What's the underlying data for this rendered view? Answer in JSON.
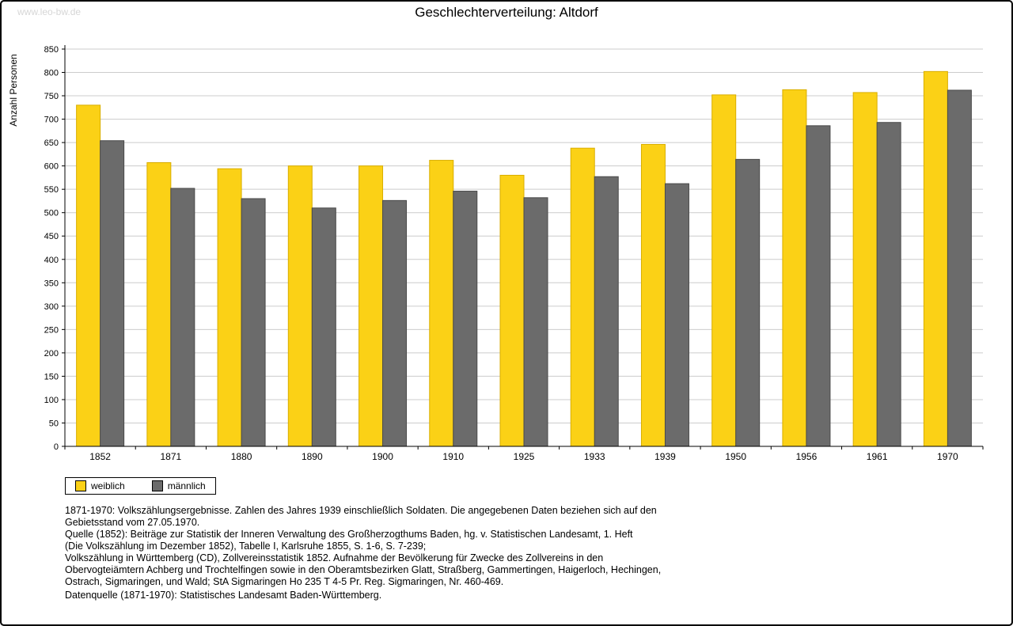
{
  "watermark": "www.leo-bw.de",
  "chart_data": {
    "type": "bar",
    "title": "Geschlechterverteilung: Altdorf",
    "xlabel": "",
    "ylabel": "Anzahl Personen",
    "categories": [
      "1852",
      "1871",
      "1880",
      "1890",
      "1900",
      "1910",
      "1925",
      "1933",
      "1939",
      "1950",
      "1956",
      "1961",
      "1970"
    ],
    "series": [
      {
        "name": "weiblich",
        "color": "#FBD116",
        "edge": "#D9AE00",
        "values": [
          730,
          607,
          594,
          600,
          600,
          612,
          580,
          638,
          646,
          752,
          763,
          757,
          802
        ]
      },
      {
        "name": "männlich",
        "color": "#6B6B6B",
        "edge": "#4A4A4A",
        "values": [
          654,
          552,
          530,
          510,
          526,
          546,
          532,
          577,
          562,
          614,
          686,
          693,
          762
        ]
      }
    ],
    "ylim": [
      0,
      850
    ],
    "ytick_step": 50,
    "grid": true,
    "grid_color": "#cccccc",
    "legend_position": "bottom-left"
  },
  "footer": {
    "lines": [
      "1871-1970: Volkszählungsergebnisse. Zahlen des Jahres 1939 einschließlich Soldaten. Die angegebenen Daten beziehen sich auf den",
      "Gebietsstand vom 27.05.1970.",
      "Quelle (1852): Beiträge zur Statistik der Inneren Verwaltung des Großherzogthums Baden, hg. v. Statistischen Landesamt, 1. Heft",
      "(Die Volkszählung im Dezember 1852), Tabelle I, Karlsruhe 1855, S. 1-6, S. 7-239;",
      "Volkszählung in Württemberg (CD), Zollvereinsstatistik 1852. Aufnahme der Bevölkerung für Zwecke des Zollvereins in den",
      "Obervogteiämtern Achberg und Trochtelfingen sowie in den Oberamtsbezirken Glatt, Straßberg, Gammertingen, Haigerloch, Hechingen,",
      "Ostrach, Sigmaringen, und Wald; StA Sigmaringen Ho 235 T 4-5 Pr. Reg. Sigmaringen, Nr. 460-469."
    ],
    "datasource": "Datenquelle (1871-1970): Statistisches Landesamt Baden-Württemberg."
  }
}
